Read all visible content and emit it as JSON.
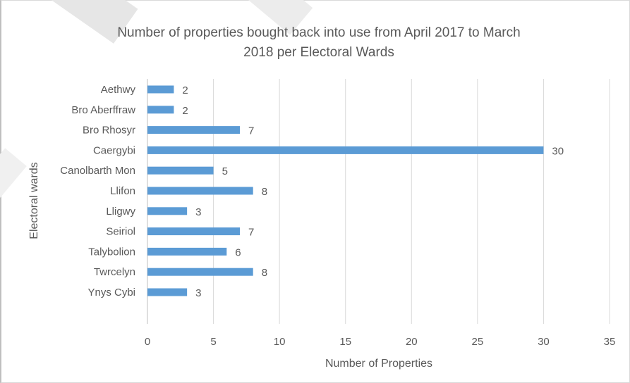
{
  "chart_data": {
    "type": "bar",
    "orientation": "horizontal",
    "title": "Number of properties bought back into use from April 2017 to March 2018 per Electoral Wards",
    "title_lines": [
      "Number of properties bought back into use from April 2017 to March",
      "2018 per Electoral Wards"
    ],
    "xlabel": "Number of Properties",
    "ylabel": "Electoral wards",
    "categories": [
      "Aethwy",
      "Bro Aberffraw",
      "Bro Rhosyr",
      "Caergybi",
      "Canolbarth Mon",
      "Llifon",
      "Lligwy",
      "Seiriol",
      "Talybolion",
      "Twrcelyn",
      "Ynys Cybi"
    ],
    "values": [
      2,
      2,
      7,
      30,
      5,
      8,
      3,
      7,
      6,
      8,
      3
    ],
    "xlim": [
      0,
      35
    ],
    "xticks": [
      0,
      5,
      10,
      15,
      20,
      25,
      30,
      35
    ],
    "grid": "vertical",
    "data_labels": true,
    "bar_color": "#5b9bd5"
  }
}
